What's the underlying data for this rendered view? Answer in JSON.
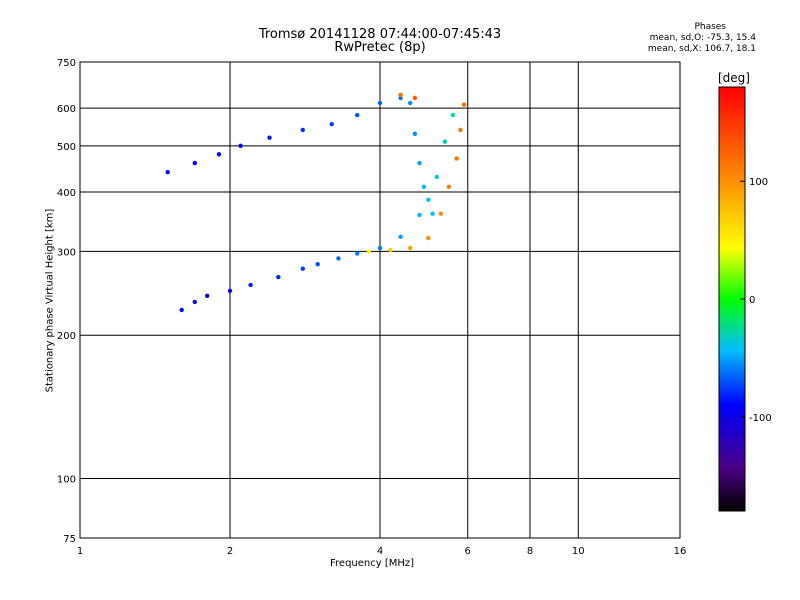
{
  "chart_data": {
    "type": "scatter",
    "title": "Tromsø 20141128 07:44:00-07:45:43",
    "subtitle": "RwPretec (8p)",
    "xlabel": "Frequency [MHz]",
    "ylabel": "Stationary phase Virtual Height [km]",
    "x_scale": "log",
    "y_scale": "log",
    "xlim": [
      1,
      16
    ],
    "ylim": [
      75,
      750
    ],
    "x_ticks": [
      1,
      2,
      4,
      6,
      8,
      10,
      16
    ],
    "y_ticks": [
      75,
      100,
      200,
      300,
      400,
      500,
      600,
      750
    ],
    "grid": true,
    "stats": {
      "title": "Phases",
      "line_o": "mean, sd,O: -75.3, 15.4",
      "line_x": "mean, sd,X: 106.7, 18.1"
    },
    "colorbar": {
      "label": "[deg]",
      "range": [
        -180,
        180
      ],
      "ticks": [
        -100,
        0,
        100
      ]
    },
    "series": [
      {
        "points": [
          [
            1.6,
            226,
            -90
          ],
          [
            1.7,
            235,
            -95
          ],
          [
            1.8,
            242,
            -92
          ],
          [
            2.0,
            248,
            -88
          ],
          [
            2.2,
            255,
            -85
          ],
          [
            2.5,
            265,
            -80
          ],
          [
            2.8,
            276,
            -75
          ],
          [
            3.0,
            282,
            -70
          ],
          [
            3.3,
            290,
            -65
          ],
          [
            3.6,
            297,
            -60
          ],
          [
            4.0,
            305,
            -60
          ],
          [
            4.4,
            322,
            -50
          ],
          [
            4.8,
            358,
            -45
          ],
          [
            5.0,
            385,
            -40
          ],
          [
            5.2,
            430,
            -35
          ],
          [
            5.4,
            510,
            -30
          ],
          [
            5.6,
            580,
            -25
          ]
        ]
      },
      {
        "points": [
          [
            1.5,
            440,
            -95
          ],
          [
            1.7,
            460,
            -92
          ],
          [
            1.9,
            480,
            -90
          ],
          [
            2.1,
            500,
            -88
          ],
          [
            2.4,
            520,
            -85
          ],
          [
            2.8,
            540,
            -80
          ],
          [
            3.2,
            555,
            -75
          ],
          [
            3.6,
            580,
            -70
          ],
          [
            4.0,
            615,
            -65
          ],
          [
            4.4,
            630,
            -60
          ],
          [
            4.6,
            615,
            -55
          ],
          [
            4.7,
            530,
            -55
          ],
          [
            4.8,
            460,
            -50
          ],
          [
            4.9,
            410,
            -45
          ],
          [
            5.1,
            360,
            -40
          ]
        ]
      },
      {
        "points": [
          [
            3.8,
            300,
            40
          ],
          [
            4.2,
            302,
            70
          ],
          [
            4.6,
            305,
            90
          ],
          [
            5.0,
            320,
            100
          ],
          [
            5.3,
            360,
            105
          ],
          [
            5.5,
            410,
            110
          ],
          [
            5.7,
            470,
            115
          ],
          [
            5.8,
            540,
            118
          ],
          [
            5.9,
            610,
            120
          ],
          [
            4.4,
            640,
            120
          ],
          [
            4.7,
            630,
            130
          ]
        ]
      }
    ]
  }
}
